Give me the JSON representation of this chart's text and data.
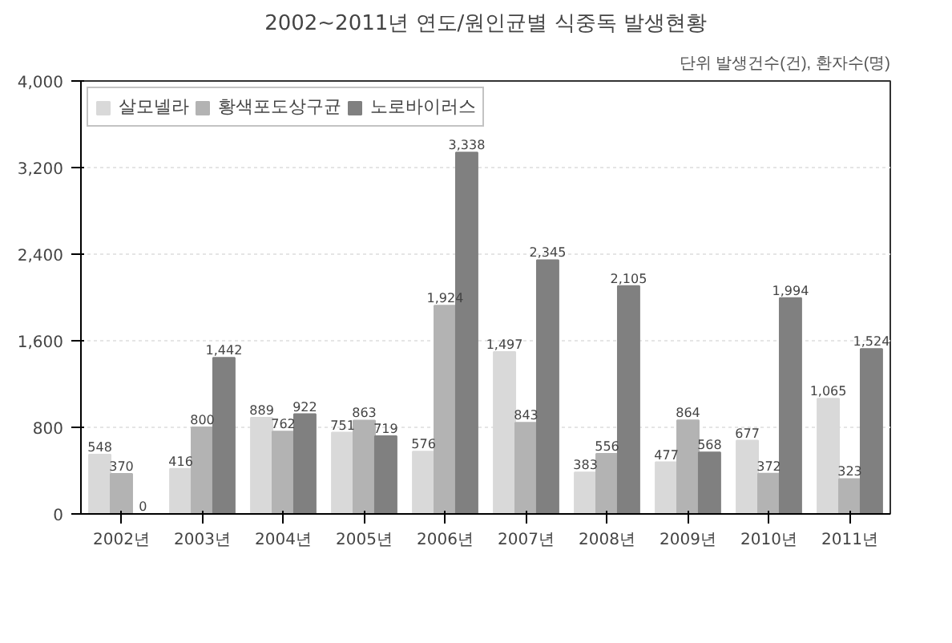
{
  "chart_data": {
    "type": "bar",
    "title": "2002~2011년 연도/원인균별 식중독 발생현황",
    "annotations": [
      "단위 발생건수(건), 환자수(명)"
    ],
    "categories": [
      "2002년",
      "2003년",
      "2004년",
      "2005년",
      "2006년",
      "2007년",
      "2008년",
      "2009년",
      "2010년",
      "2011년"
    ],
    "series": [
      {
        "name": "살모넬라",
        "color": "#d9d9d9",
        "values": [
          548,
          416,
          889,
          751,
          576,
          1497,
          383,
          477,
          677,
          1065
        ],
        "value_labels": [
          "548",
          "416",
          "889",
          "751",
          "576",
          "1,497",
          "383",
          "477",
          "677",
          "1,065"
        ]
      },
      {
        "name": "황색포도상구균",
        "color": "#b3b3b3",
        "values": [
          370,
          800,
          762,
          863,
          1924,
          843,
          556,
          864,
          372,
          323
        ],
        "value_labels": [
          "370",
          "800",
          "762",
          "863",
          "1,924",
          "843",
          "556",
          "864",
          "372",
          "323"
        ]
      },
      {
        "name": "노로바이러스",
        "color": "#808080",
        "values": [
          0,
          1442,
          922,
          719,
          3338,
          2345,
          2105,
          568,
          1994,
          1524
        ],
        "value_labels": [
          "0",
          "1,442",
          "922",
          "719",
          "3,338",
          "2,345",
          "2,105",
          "568",
          "1,994",
          "1,524"
        ]
      }
    ],
    "ylim": [
      0,
      4000
    ],
    "yticks": [
      {
        "value": 0,
        "label": "0"
      },
      {
        "value": 800,
        "label": "800"
      },
      {
        "value": 1600,
        "label": "1,600"
      },
      {
        "value": 2400,
        "label": "2,400"
      },
      {
        "value": 3200,
        "label": "3,200"
      },
      {
        "value": 4000,
        "label": "4,000"
      }
    ],
    "grid": "y",
    "legend": "top left"
  }
}
